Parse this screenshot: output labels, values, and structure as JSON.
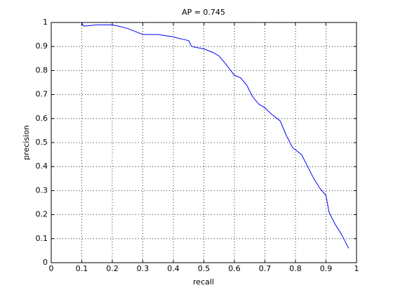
{
  "chart_data": {
    "type": "line",
    "title": "AP = 0.745",
    "xlabel": "recall",
    "ylabel": "precision",
    "x": [
      0.1,
      0.105,
      0.15,
      0.2,
      0.22,
      0.25,
      0.28,
      0.3,
      0.35,
      0.4,
      0.43,
      0.45,
      0.46,
      0.5,
      0.53,
      0.55,
      0.57,
      0.6,
      0.62,
      0.64,
      0.66,
      0.68,
      0.7,
      0.72,
      0.75,
      0.77,
      0.79,
      0.8,
      0.82,
      0.84,
      0.86,
      0.88,
      0.9,
      0.91,
      0.93,
      0.95,
      0.97,
      0.975
    ],
    "series": [
      {
        "color": "#0000ff",
        "values": [
          1.0,
          0.985,
          0.99,
          0.99,
          0.985,
          0.975,
          0.96,
          0.95,
          0.95,
          0.94,
          0.93,
          0.925,
          0.9,
          0.89,
          0.875,
          0.86,
          0.83,
          0.78,
          0.77,
          0.74,
          0.69,
          0.66,
          0.645,
          0.62,
          0.59,
          0.53,
          0.48,
          0.47,
          0.45,
          0.4,
          0.35,
          0.31,
          0.28,
          0.21,
          0.16,
          0.12,
          0.07,
          0.06
        ]
      }
    ],
    "xlim": [
      0,
      1
    ],
    "ylim": [
      0,
      1
    ],
    "xticks": [
      0,
      0.1,
      0.2,
      0.3,
      0.4,
      0.5,
      0.6,
      0.7,
      0.8,
      0.9,
      1
    ],
    "yticks": [
      0,
      0.1,
      0.2,
      0.3,
      0.4,
      0.5,
      0.6,
      0.7,
      0.8,
      0.9,
      1
    ],
    "grid": true
  }
}
